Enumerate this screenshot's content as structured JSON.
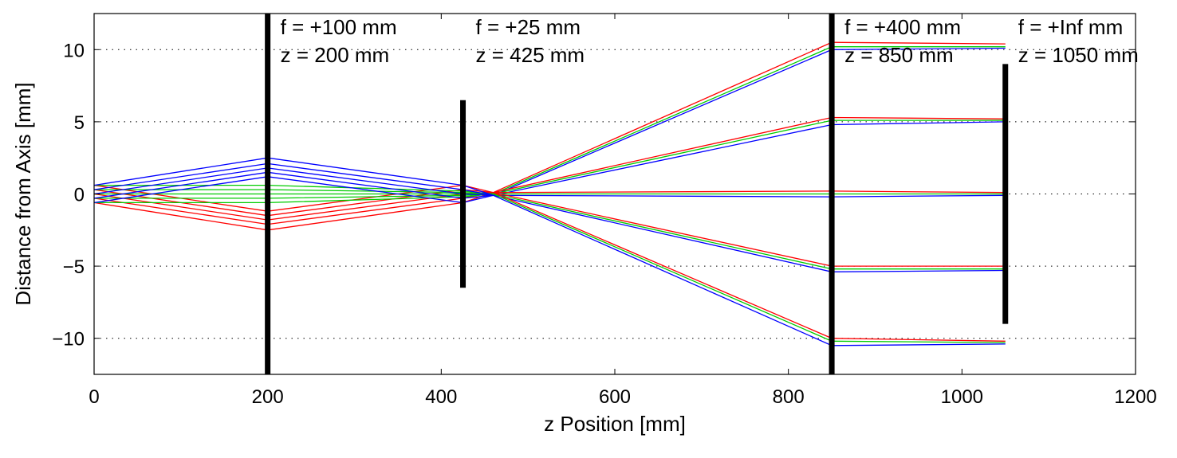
{
  "chart_data": {
    "type": "line",
    "title": "",
    "xlabel": "z Position [mm]",
    "ylabel": "Distance from Axis [mm]",
    "xlim": [
      0,
      1200
    ],
    "ylim": [
      -12.5,
      12.5
    ],
    "xticks": [
      0,
      200,
      400,
      600,
      800,
      1000,
      1200
    ],
    "yticks": [
      10,
      5,
      0,
      -5,
      -10
    ],
    "ytick_labels": [
      "10",
      "5",
      "0",
      "−5",
      "−10"
    ],
    "grid": "dotted horizontal at y ticks",
    "colors": {
      "red": "#ff0000",
      "green": "#00cc00",
      "blue": "#0000ff",
      "lens": "#000000",
      "grid": "#000000"
    },
    "lenses": [
      {
        "z": 200,
        "half_height": 12.5,
        "f_label": "f = +100 mm",
        "z_label": "z = 200 mm"
      },
      {
        "z": 425,
        "half_height": 6.5,
        "f_label": "f = +25 mm",
        "z_label": "z = 425 mm"
      },
      {
        "z": 850,
        "half_height": 12.5,
        "f_label": "f = +400 mm",
        "z_label": "z = 850 mm"
      },
      {
        "z": 1050,
        "half_height": 9.0,
        "f_label": "f = +Inf mm",
        "z_label": "z = 1050 mm"
      }
    ],
    "series": [
      {
        "color": "red",
        "group": "field-1",
        "x": [
          0,
          200,
          425,
          460
        ],
        "y": [
          0.6,
          -1.2,
          0.6,
          0.1
        ]
      },
      {
        "color": "red",
        "group": "field-1",
        "x": [
          0,
          200,
          425,
          460
        ],
        "y": [
          0.3,
          -1.5,
          0.3,
          0.1
        ]
      },
      {
        "color": "red",
        "group": "field-1",
        "x": [
          0,
          200,
          425,
          460
        ],
        "y": [
          0.0,
          -1.8,
          0.0,
          0.1
        ]
      },
      {
        "color": "red",
        "group": "field-1",
        "x": [
          0,
          200,
          425,
          460
        ],
        "y": [
          -0.3,
          -2.1,
          -0.3,
          0.1
        ]
      },
      {
        "color": "red",
        "group": "field-1",
        "x": [
          0,
          200,
          425,
          460
        ],
        "y": [
          -0.6,
          -2.5,
          -0.6,
          0.1
        ]
      },
      {
        "color": "green",
        "group": "field-0",
        "x": [
          0,
          200,
          425,
          460
        ],
        "y": [
          0.6,
          0.6,
          0.2,
          0.0
        ]
      },
      {
        "color": "green",
        "group": "field-0",
        "x": [
          0,
          200,
          425,
          460
        ],
        "y": [
          0.3,
          0.3,
          0.1,
          0.0
        ]
      },
      {
        "color": "green",
        "group": "field-0",
        "x": [
          0,
          200,
          425,
          460
        ],
        "y": [
          0.0,
          0.0,
          0.0,
          0.0
        ]
      },
      {
        "color": "green",
        "group": "field-0",
        "x": [
          0,
          200,
          425,
          460
        ],
        "y": [
          -0.3,
          -0.3,
          -0.1,
          0.0
        ]
      },
      {
        "color": "green",
        "group": "field-0",
        "x": [
          0,
          200,
          425,
          460
        ],
        "y": [
          -0.6,
          -0.6,
          -0.2,
          0.0
        ]
      },
      {
        "color": "blue",
        "group": "field-2",
        "x": [
          0,
          200,
          425,
          460
        ],
        "y": [
          0.6,
          2.5,
          0.6,
          -0.1
        ]
      },
      {
        "color": "blue",
        "group": "field-2",
        "x": [
          0,
          200,
          425,
          460
        ],
        "y": [
          0.3,
          2.1,
          0.3,
          -0.1
        ]
      },
      {
        "color": "blue",
        "group": "field-2",
        "x": [
          0,
          200,
          425,
          460
        ],
        "y": [
          0.0,
          1.8,
          0.0,
          -0.1
        ]
      },
      {
        "color": "blue",
        "group": "field-2",
        "x": [
          0,
          200,
          425,
          460
        ],
        "y": [
          -0.3,
          1.5,
          -0.3,
          -0.1
        ]
      },
      {
        "color": "blue",
        "group": "field-2",
        "x": [
          0,
          200,
          425,
          460
        ],
        "y": [
          -0.6,
          1.2,
          -0.6,
          -0.1
        ]
      },
      {
        "color": "red",
        "group": "fan",
        "x": [
          460,
          850,
          1050
        ],
        "y": [
          0.1,
          10.5,
          10.4
        ]
      },
      {
        "color": "green",
        "group": "fan",
        "x": [
          460,
          850,
          1050
        ],
        "y": [
          0.0,
          10.2,
          10.2
        ]
      },
      {
        "color": "blue",
        "group": "fan",
        "x": [
          460,
          850,
          1050
        ],
        "y": [
          -0.1,
          10.0,
          10.1
        ]
      },
      {
        "color": "red",
        "group": "fan",
        "x": [
          460,
          850,
          1050
        ],
        "y": [
          0.1,
          5.3,
          5.2
        ]
      },
      {
        "color": "green",
        "group": "fan",
        "x": [
          460,
          850,
          1050
        ],
        "y": [
          0.0,
          5.1,
          5.1
        ]
      },
      {
        "color": "blue",
        "group": "fan",
        "x": [
          460,
          850,
          1050
        ],
        "y": [
          -0.1,
          4.8,
          5.0
        ]
      },
      {
        "color": "red",
        "group": "fan",
        "x": [
          460,
          850,
          1050
        ],
        "y": [
          0.1,
          0.2,
          0.1
        ]
      },
      {
        "color": "green",
        "group": "fan",
        "x": [
          460,
          850,
          1050
        ],
        "y": [
          0.0,
          0.0,
          0.0
        ]
      },
      {
        "color": "blue",
        "group": "fan",
        "x": [
          460,
          850,
          1050
        ],
        "y": [
          -0.1,
          -0.2,
          -0.1
        ]
      },
      {
        "color": "red",
        "group": "fan",
        "x": [
          460,
          850,
          1050
        ],
        "y": [
          0.1,
          -5.0,
          -5.0
        ]
      },
      {
        "color": "green",
        "group": "fan",
        "x": [
          460,
          850,
          1050
        ],
        "y": [
          0.0,
          -5.2,
          -5.2
        ]
      },
      {
        "color": "blue",
        "group": "fan",
        "x": [
          460,
          850,
          1050
        ],
        "y": [
          -0.1,
          -5.4,
          -5.3
        ]
      },
      {
        "color": "red",
        "group": "fan",
        "x": [
          460,
          850,
          1050
        ],
        "y": [
          0.1,
          -10.0,
          -10.2
        ]
      },
      {
        "color": "green",
        "group": "fan",
        "x": [
          460,
          850,
          1050
        ],
        "y": [
          0.0,
          -10.2,
          -10.3
        ]
      },
      {
        "color": "blue",
        "group": "fan",
        "x": [
          460,
          850,
          1050
        ],
        "y": [
          -0.1,
          -10.5,
          -10.4
        ]
      }
    ]
  }
}
